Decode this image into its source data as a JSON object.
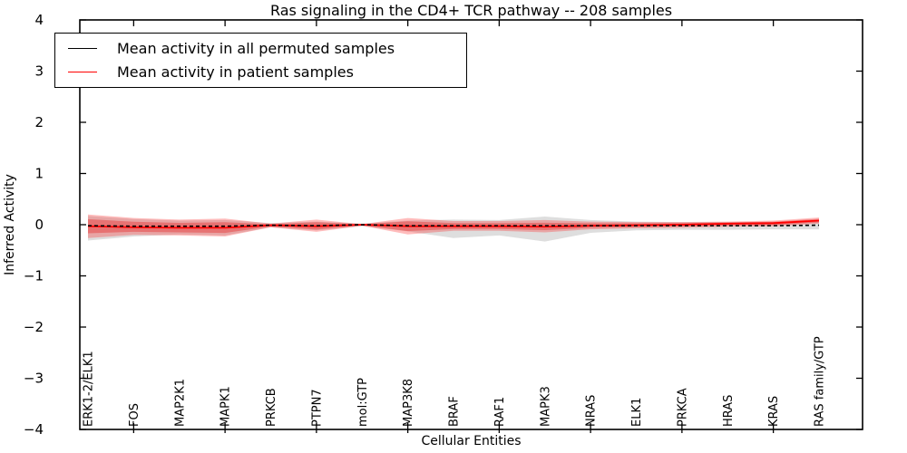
{
  "figure": {
    "title": "Ras signaling in the CD4+ TCR pathway -- 208 samples",
    "xlabel": "Cellular Entities",
    "ylabel": "Inferred Activity"
  },
  "legend": {
    "entries": [
      {
        "label": "Mean activity in all permuted samples",
        "color": "#000000"
      },
      {
        "label": "Mean activity in patient samples",
        "color": "#ff0000"
      }
    ]
  },
  "chart_data": {
    "type": "line",
    "title": "Ras signaling in the CD4+ TCR pathway -- 208 samples",
    "xlabel": "Cellular Entities",
    "ylabel": "Inferred Activity",
    "ylim": [
      -4,
      4
    ],
    "yticks": [
      -4,
      -3,
      -2,
      -1,
      0,
      1,
      2,
      3,
      4
    ],
    "xtick_indices": [
      1,
      3,
      5,
      7,
      9,
      11,
      13,
      15
    ],
    "grid": false,
    "legend_position": "upper left",
    "categories": [
      "ERK1-2/ELK1",
      "FOS",
      "MAP2K1",
      "MAPK1",
      "PRKCB",
      "PTPN7",
      "mol:GTP",
      "MAP3K8",
      "BRAF",
      "RAF1",
      "MAPK3",
      "NRAS",
      "ELK1",
      "PRKCA",
      "HRAS",
      "KRAS",
      "RAS family/GTP"
    ],
    "inner_band_factor": 0.6,
    "series": [
      {
        "name": "Mean activity in all permuted samples",
        "color": "#000000",
        "line_style": "dashed",
        "values": [
          -0.02,
          -0.03,
          -0.03,
          -0.03,
          -0.01,
          -0.02,
          0.0,
          -0.02,
          -0.02,
          -0.02,
          -0.02,
          -0.02,
          -0.02,
          -0.02,
          -0.02,
          -0.02,
          -0.01
        ],
        "band_upper": [
          0.17,
          0.11,
          0.08,
          0.09,
          0.03,
          0.06,
          0.02,
          0.08,
          0.1,
          0.09,
          0.16,
          0.09,
          0.06,
          0.05,
          0.05,
          0.05,
          0.06
        ],
        "band_lower": [
          -0.31,
          -0.23,
          -0.19,
          -0.21,
          -0.05,
          -0.11,
          -0.03,
          -0.13,
          -0.26,
          -0.21,
          -0.33,
          -0.16,
          -0.11,
          -0.1,
          -0.1,
          -0.09,
          -0.09
        ],
        "band_color": "#888888",
        "band_opacity": 0.28
      },
      {
        "name": "Mean activity in patient samples",
        "color": "#ff0000",
        "line_style": "solid",
        "values": [
          -0.03,
          -0.05,
          -0.06,
          -0.06,
          -0.01,
          -0.03,
          0.0,
          -0.03,
          -0.03,
          -0.03,
          -0.04,
          -0.02,
          -0.01,
          0.0,
          0.02,
          0.03,
          0.08
        ],
        "band_upper": [
          0.2,
          0.13,
          0.1,
          0.12,
          0.02,
          0.1,
          0.01,
          0.13,
          0.07,
          0.07,
          0.09,
          0.06,
          0.05,
          0.05,
          0.06,
          0.08,
          0.14
        ],
        "band_lower": [
          -0.26,
          -0.2,
          -0.21,
          -0.23,
          -0.05,
          -0.14,
          -0.02,
          -0.19,
          -0.12,
          -0.12,
          -0.15,
          -0.09,
          -0.07,
          -0.06,
          -0.04,
          -0.03,
          0.02
        ],
        "band_color": "#ff2222",
        "band_opacity": 0.3,
        "has_inner_band": true,
        "inner_band_color": "#e62020",
        "inner_band_opacity": 0.38
      }
    ]
  }
}
